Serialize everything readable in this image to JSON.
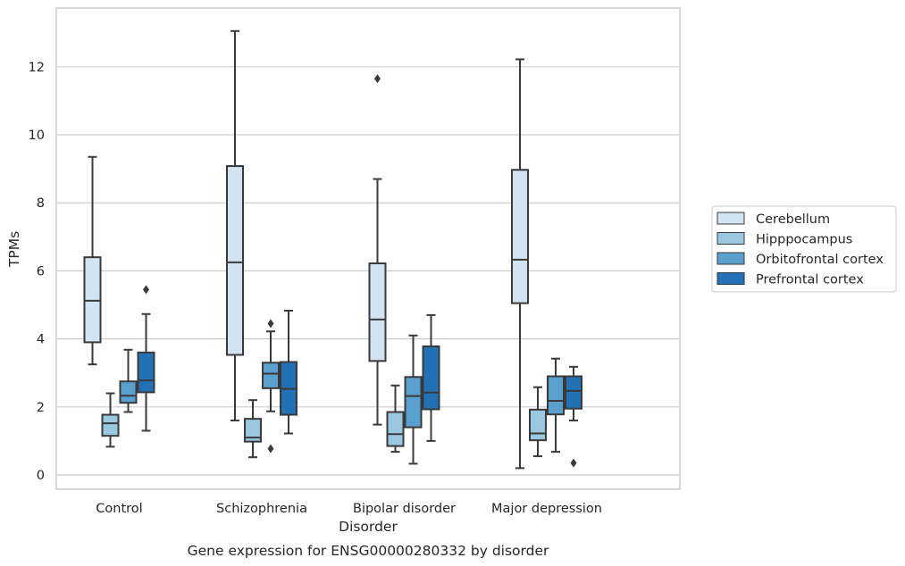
{
  "chart_data": {
    "type": "boxplot",
    "title": "",
    "caption": "Gene expression for ENSG00000280332 by disorder",
    "xlabel": "Disorder",
    "ylabel": "TPMs",
    "ylim": [
      -0.4,
      13.7
    ],
    "yticks": [
      0,
      2,
      4,
      6,
      8,
      10,
      12
    ],
    "grid": "horizontal",
    "legend_position": "right",
    "categories": [
      "Control",
      "Schizophrenia",
      "Bipolar disorder",
      "Major depression"
    ],
    "series": [
      {
        "name": "Cerebellum",
        "color": "#d2e3f3",
        "boxes": [
          {
            "whisker_low": 3.25,
            "q1": 3.9,
            "median": 5.12,
            "q3": 6.4,
            "whisker_high": 9.35,
            "outliers": []
          },
          {
            "whisker_low": 1.6,
            "q1": 3.53,
            "median": 6.25,
            "q3": 9.08,
            "whisker_high": 13.05,
            "outliers": []
          },
          {
            "whisker_low": 1.48,
            "q1": 3.35,
            "median": 4.57,
            "q3": 6.22,
            "whisker_high": 8.7,
            "outliers": [
              11.65
            ]
          },
          {
            "whisker_low": 0.2,
            "q1": 5.05,
            "median": 6.33,
            "q3": 8.97,
            "whisker_high": 12.22,
            "outliers": []
          }
        ]
      },
      {
        "name": "Hipppocampus",
        "color": "#9ac8e0",
        "boxes": [
          {
            "whisker_low": 0.83,
            "q1": 1.15,
            "median": 1.52,
            "q3": 1.77,
            "whisker_high": 2.4,
            "outliers": []
          },
          {
            "whisker_low": 0.52,
            "q1": 0.98,
            "median": 1.1,
            "q3": 1.65,
            "whisker_high": 2.2,
            "outliers": []
          },
          {
            "whisker_low": 0.68,
            "q1": 0.85,
            "median": 1.2,
            "q3": 1.85,
            "whisker_high": 2.63,
            "outliers": []
          },
          {
            "whisker_low": 0.55,
            "q1": 1.02,
            "median": 1.22,
            "q3": 1.92,
            "whisker_high": 2.58,
            "outliers": []
          }
        ]
      },
      {
        "name": "Orbitofrontal cortex",
        "color": "#5aa0ce",
        "boxes": [
          {
            "whisker_low": 1.85,
            "q1": 2.12,
            "median": 2.33,
            "q3": 2.75,
            "whisker_high": 3.68,
            "outliers": []
          },
          {
            "whisker_low": 1.87,
            "q1": 2.55,
            "median": 2.98,
            "q3": 3.3,
            "whisker_high": 4.22,
            "outliers": [
              4.45,
              0.77
            ]
          },
          {
            "whisker_low": 0.33,
            "q1": 1.4,
            "median": 2.32,
            "q3": 2.88,
            "whisker_high": 4.1,
            "outliers": []
          },
          {
            "whisker_low": 0.68,
            "q1": 1.78,
            "median": 2.18,
            "q3": 2.9,
            "whisker_high": 3.42,
            "outliers": []
          }
        ]
      },
      {
        "name": "Prefrontal cortex",
        "color": "#2271b5",
        "boxes": [
          {
            "whisker_low": 1.3,
            "q1": 2.43,
            "median": 2.78,
            "q3": 3.6,
            "whisker_high": 4.73,
            "outliers": [
              5.45
            ]
          },
          {
            "whisker_low": 1.22,
            "q1": 1.77,
            "median": 2.53,
            "q3": 3.32,
            "whisker_high": 4.83,
            "outliers": []
          },
          {
            "whisker_low": 1.0,
            "q1": 1.93,
            "median": 2.42,
            "q3": 3.78,
            "whisker_high": 4.7,
            "outliers": []
          },
          {
            "whisker_low": 1.6,
            "q1": 1.95,
            "median": 2.47,
            "q3": 2.9,
            "whisker_high": 3.18,
            "outliers": [
              0.35
            ]
          }
        ]
      }
    ]
  }
}
